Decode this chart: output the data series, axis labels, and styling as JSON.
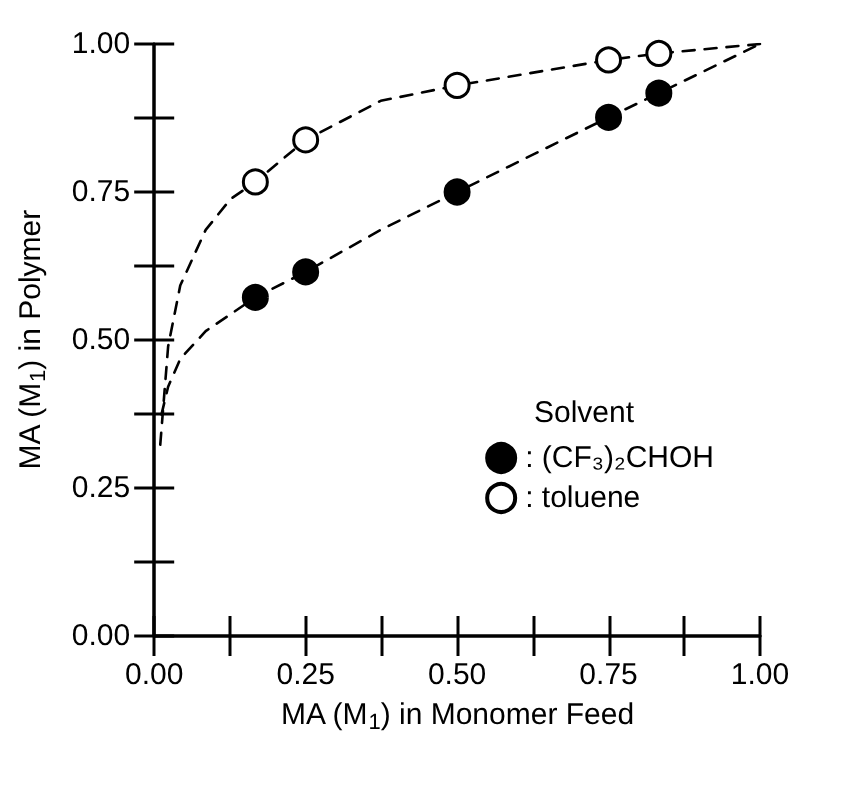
{
  "chart_data": {
    "type": "scatter",
    "xlabel": "MA (M$_{1}$) in Monomer Feed",
    "ylabel": "MA (M$_{1}$) in Polymer",
    "legend_title": "Solvent",
    "legend": "bottom right",
    "grid": false,
    "marker": "circle",
    "xlim": [
      0,
      1
    ],
    "ylim": [
      0,
      1
    ],
    "xticks": [
      {
        "value": 0,
        "label": "0.00"
      },
      {
        "value": 0.125,
        "label": null
      },
      {
        "value": 0.25,
        "label": "0.25"
      },
      {
        "value": 0.375,
        "label": null
      },
      {
        "value": 0.5,
        "label": "0.50"
      },
      {
        "value": 0.625,
        "label": null
      },
      {
        "value": 0.75,
        "label": "0.75"
      },
      {
        "value": 0.875,
        "label": null
      },
      {
        "value": 1,
        "label": "1.00"
      }
    ],
    "yticks": [
      {
        "value": 0,
        "label": "0.00"
      },
      {
        "value": 0.125,
        "label": null
      },
      {
        "value": 0.25,
        "label": "0.25"
      },
      {
        "value": 0.375,
        "label": null
      },
      {
        "value": 0.5,
        "label": "0.50"
      },
      {
        "value": 0.625,
        "label": null
      },
      {
        "value": 0.75,
        "label": "0.75"
      },
      {
        "value": 0.875,
        "label": null
      },
      {
        "value": 1,
        "label": "1.00"
      }
    ],
    "series": [
      {
        "name": ": (CF₃)₂CHOH",
        "color": "#000000",
        "x": [
          0.167,
          0.25,
          0.5,
          0.75,
          0.833
        ],
        "values": [
          0.572,
          0.615,
          0.75,
          0.876,
          0.917
        ]
      },
      {
        "name": ": toluene",
        "color": "#ffffff",
        "x": [
          0.167,
          0.25,
          0.5,
          0.75,
          0.833
        ],
        "values": [
          0.767,
          0.838,
          0.93,
          0.973,
          0.984
        ]
      },
      {
        "type": "line",
        "color": "#000000",
        "marker": "none",
        "line_style": "dashed",
        "x": [
          0.012,
          0.023,
          0.043,
          0.085,
          0.167,
          0.25,
          0.374,
          0.5,
          0.75,
          0.833,
          1
        ],
        "values": [
          0.374,
          0.421,
          0.468,
          0.515,
          0.572,
          0.615,
          0.686,
          0.75,
          0.876,
          0.917,
          1
        ]
      },
      {
        "type": "line",
        "color": "#000000",
        "marker": "none",
        "line_style": "dashed",
        "x": [
          0.01,
          0.023,
          0.043,
          0.085,
          0.126,
          0.167,
          0.25,
          0.374,
          0.5,
          0.75,
          0.833,
          1
        ],
        "values": [
          0.323,
          0.489,
          0.592,
          0.686,
          0.738,
          0.767,
          0.838,
          0.904,
          0.93,
          0.973,
          0.984,
          1
        ]
      }
    ]
  }
}
